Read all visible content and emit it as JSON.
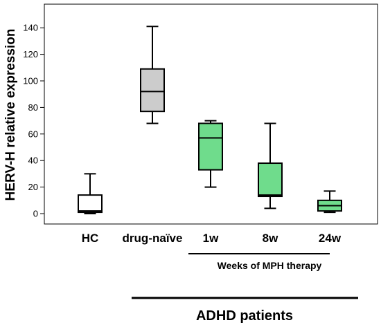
{
  "chart_data": {
    "type": "box",
    "ylabel": "HERV-H relative expression",
    "ylim": [
      -8,
      163
    ],
    "yticks": [
      0,
      20,
      40,
      60,
      80,
      100,
      120,
      140
    ],
    "categories": [
      "HC",
      "drug-naïve",
      "1w",
      "8w",
      "24w"
    ],
    "boxes": [
      {
        "category": "HC",
        "min": 0,
        "q1": 1,
        "median": 2,
        "q3": 14,
        "max": 30,
        "color": "#ffffff"
      },
      {
        "category": "drug-naïve",
        "min": 68,
        "q1": 77,
        "median": 92,
        "q3": 109,
        "max": 141,
        "color": "#cccccc"
      },
      {
        "category": "1w",
        "min": 20,
        "q1": 33,
        "median": 57,
        "q3": 68,
        "max": 70,
        "color": "#6fdc8c"
      },
      {
        "category": "8w",
        "min": 4,
        "q1": 13,
        "median": 14,
        "q3": 38,
        "max": 68,
        "color": "#6fdc8c"
      },
      {
        "category": "24w",
        "min": 1,
        "q1": 2,
        "median": 6,
        "q3": 10,
        "max": 17,
        "color": "#6fdc8c"
      }
    ],
    "group_labels": {
      "mph": "Weeks of MPH therapy",
      "adhd": "ADHD patients"
    }
  }
}
